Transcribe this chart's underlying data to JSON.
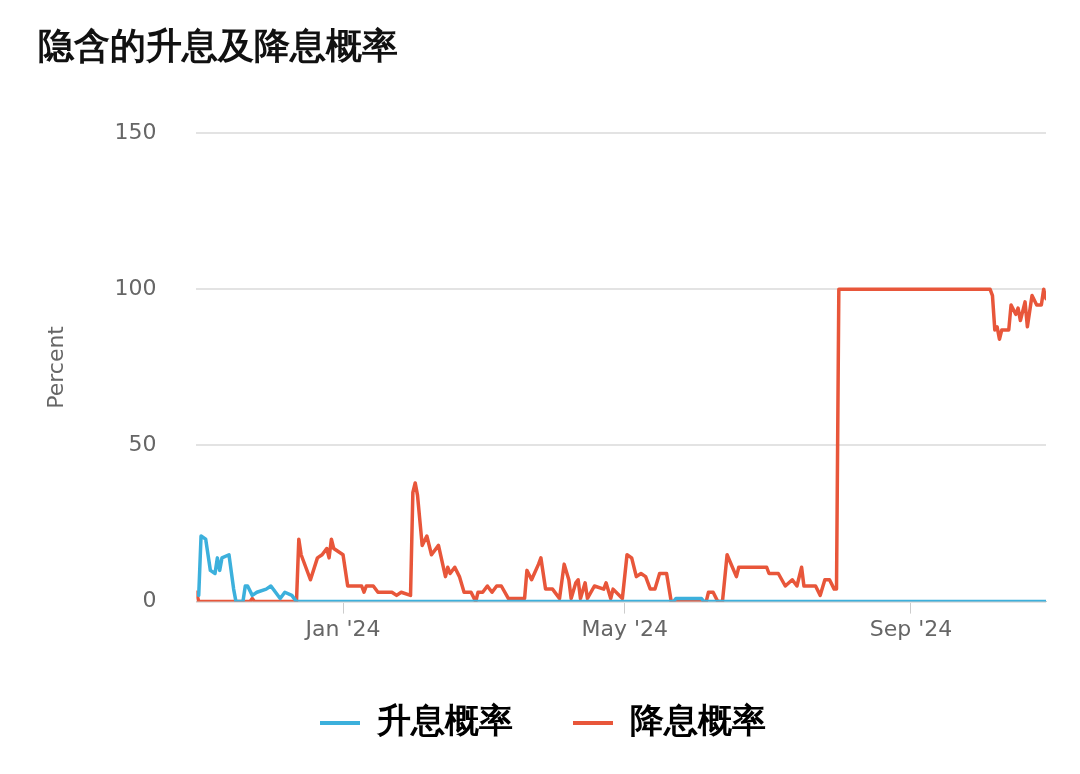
{
  "chart_data": {
    "type": "line",
    "title": "隐含的升息及降息概率",
    "ylabel": "Percent",
    "xlim": [
      "2023-10-30",
      "2024-10-29"
    ],
    "xticks": [
      {
        "value": "2024-01-01",
        "label": "Jan '24"
      },
      {
        "value": "2024-05-01",
        "label": "May '24"
      },
      {
        "value": "2024-09-01",
        "label": "Sep '24"
      }
    ],
    "ylim": [
      0,
      150
    ],
    "yticks": [
      0,
      50,
      100,
      150
    ],
    "grid": "y",
    "legend": "bottom",
    "marker": "none",
    "line_style": "solid",
    "series": [
      {
        "name": "升息概率",
        "color": "#3cb0dc",
        "x": [
          "2023-10-31",
          "2023-11-01",
          "2023-11-03",
          "2023-11-05",
          "2023-11-07",
          "2023-11-08",
          "2023-11-09",
          "2023-11-10",
          "2023-11-13",
          "2023-11-15",
          "2023-11-16",
          "2023-11-19",
          "2023-11-20",
          "2023-11-21",
          "2023-11-23",
          "2023-11-25",
          "2023-11-29",
          "2023-12-01",
          "2023-12-03",
          "2023-12-05",
          "2023-12-07",
          "2023-12-10",
          "2023-12-12",
          "2024-05-22",
          "2024-05-23",
          "2024-06-03",
          "2024-06-04",
          "2024-10-29"
        ],
        "values": [
          2,
          21,
          20,
          10,
          9,
          14,
          10,
          14,
          15,
          4,
          0,
          0,
          5,
          5,
          2,
          3,
          4,
          5,
          3,
          1,
          3,
          2,
          0,
          0,
          1,
          1,
          0,
          0
        ]
      },
      {
        "name": "降息概率",
        "color": "#e8563a",
        "x": [
          "2023-10-30",
          "2023-10-31",
          "2023-11-22",
          "2023-11-23",
          "2023-11-24",
          "2023-12-12",
          "2023-12-13",
          "2023-12-14",
          "2023-12-18",
          "2023-12-21",
          "2023-12-23",
          "2023-12-25",
          "2023-12-26",
          "2023-12-27",
          "2023-12-28",
          "2024-01-01",
          "2024-01-03",
          "2024-01-09",
          "2024-01-10",
          "2024-01-11",
          "2024-01-14",
          "2024-01-16",
          "2024-01-22",
          "2024-01-24",
          "2024-01-26",
          "2024-01-30",
          "2024-01-31",
          "2024-02-01",
          "2024-02-02",
          "2024-02-04",
          "2024-02-06",
          "2024-02-08",
          "2024-02-11",
          "2024-02-14",
          "2024-02-15",
          "2024-02-16",
          "2024-02-18",
          "2024-02-20",
          "2024-02-22",
          "2024-02-25",
          "2024-02-27",
          "2024-02-28",
          "2024-03-01",
          "2024-03-03",
          "2024-03-05",
          "2024-03-07",
          "2024-03-09",
          "2024-03-12",
          "2024-03-19",
          "2024-03-20",
          "2024-03-22",
          "2024-03-25",
          "2024-03-26",
          "2024-03-28",
          "2024-03-31",
          "2024-04-03",
          "2024-04-05",
          "2024-04-07",
          "2024-04-08",
          "2024-04-10",
          "2024-04-11",
          "2024-04-12",
          "2024-04-14",
          "2024-04-15",
          "2024-04-18",
          "2024-04-22",
          "2024-04-23",
          "2024-04-25",
          "2024-04-26",
          "2024-04-30",
          "2024-05-02",
          "2024-05-04",
          "2024-05-06",
          "2024-05-08",
          "2024-05-10",
          "2024-05-12",
          "2024-05-14",
          "2024-05-16",
          "2024-05-19",
          "2024-05-21",
          "2024-06-05",
          "2024-06-06",
          "2024-06-08",
          "2024-06-10",
          "2024-06-12",
          "2024-06-14",
          "2024-06-18",
          "2024-06-19",
          "2024-07-01",
          "2024-07-02",
          "2024-07-06",
          "2024-07-09",
          "2024-07-12",
          "2024-07-14",
          "2024-07-16",
          "2024-07-17",
          "2024-07-22",
          "2024-07-24",
          "2024-07-26",
          "2024-07-28",
          "2024-07-30",
          "2024-07-31",
          "2024-08-01",
          "2024-10-05",
          "2024-10-06",
          "2024-10-07",
          "2024-10-08",
          "2024-10-09",
          "2024-10-10",
          "2024-10-13",
          "2024-10-14",
          "2024-10-16",
          "2024-10-17",
          "2024-10-18",
          "2024-10-20",
          "2024-10-21",
          "2024-10-23",
          "2024-10-25",
          "2024-10-27",
          "2024-10-28",
          "2024-10-29"
        ],
        "values": [
          3,
          0,
          0,
          1,
          0,
          0,
          20,
          15,
          7,
          14,
          15,
          17,
          14,
          20,
          17,
          15,
          5,
          5,
          3,
          5,
          5,
          3,
          3,
          2,
          3,
          2,
          35,
          38,
          34,
          18,
          21,
          15,
          18,
          8,
          11,
          9,
          11,
          8,
          3,
          3,
          0,
          3,
          3,
          5,
          3,
          5,
          5,
          1,
          1,
          10,
          7,
          12,
          14,
          4,
          4,
          1,
          12,
          7,
          1,
          6,
          7,
          1,
          6,
          1,
          5,
          4,
          6,
          1,
          4,
          1,
          15,
          14,
          8,
          9,
          8,
          4,
          4,
          9,
          9,
          0,
          0,
          3,
          3,
          0,
          0,
          15,
          8,
          11,
          11,
          9,
          9,
          5,
          7,
          5,
          11,
          5,
          5,
          2,
          7,
          7,
          4,
          4,
          100,
          100,
          98,
          87,
          88,
          84,
          87,
          87,
          95,
          92,
          94,
          90,
          96,
          88,
          98,
          95,
          95,
          100,
          97
        ]
      }
    ]
  }
}
